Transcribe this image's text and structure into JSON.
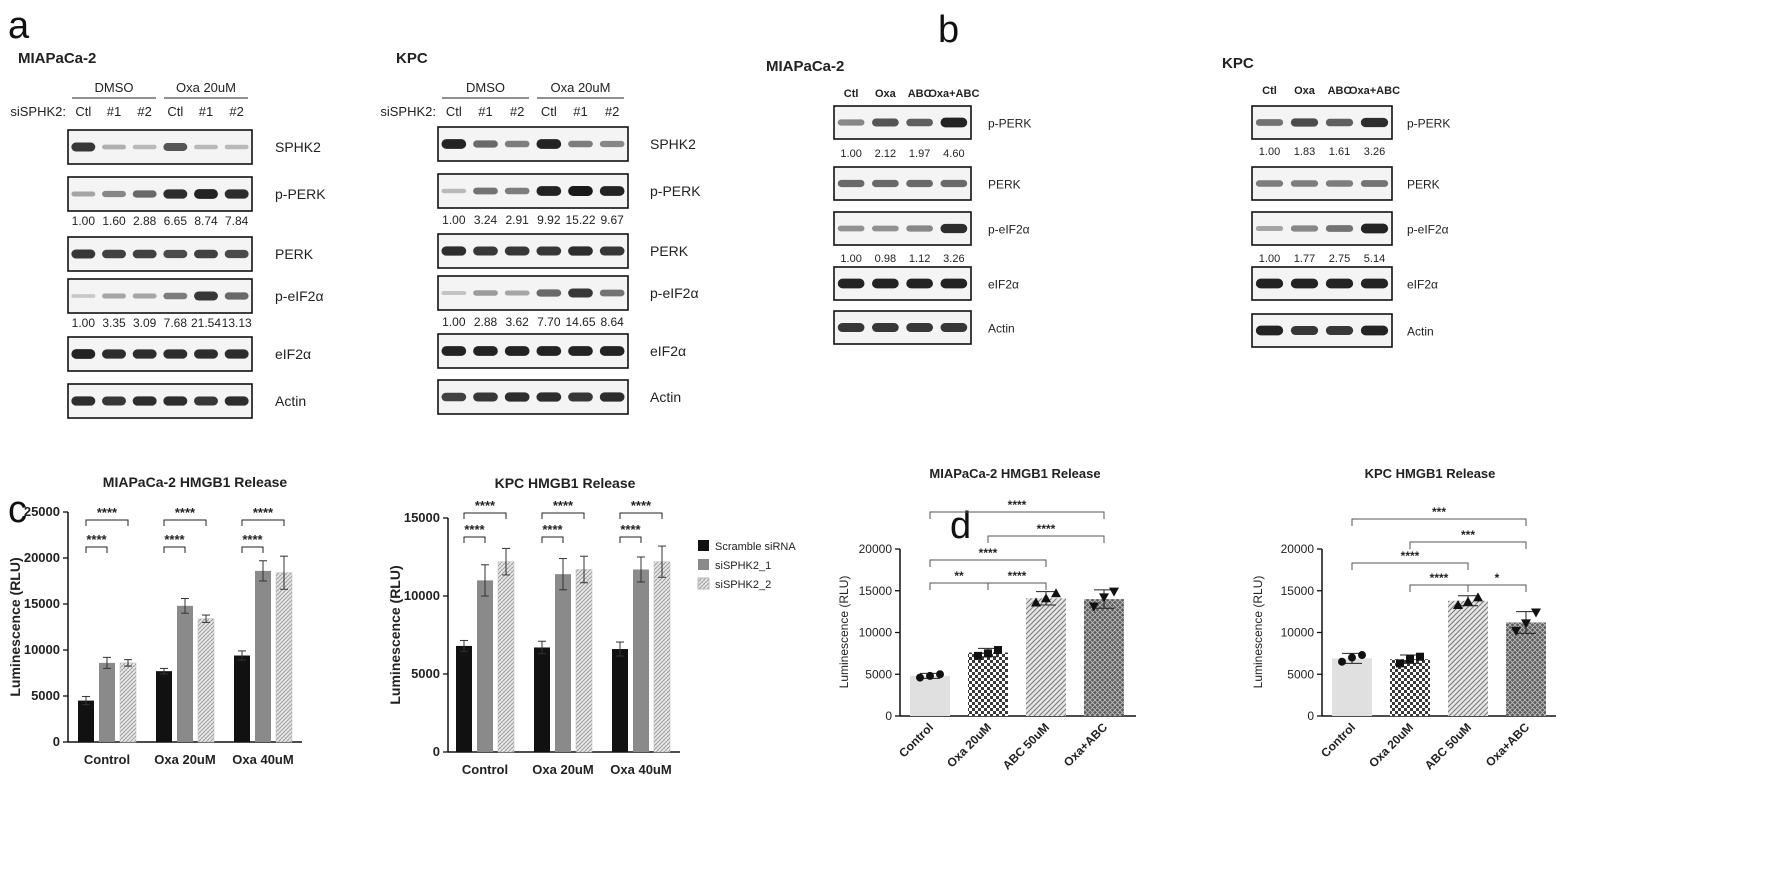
{
  "panel_letters": {
    "a": "a",
    "b": "b",
    "c": "c",
    "d": "d"
  },
  "blots": [
    {
      "title": "MIAPaCa-2",
      "group_headers": [
        "DMSO",
        "Oxa 20uM"
      ],
      "lane_row_label": "siSPHK2:",
      "lanes": [
        "Ctl",
        "#1",
        "#2",
        "Ctl",
        "#1",
        "#2"
      ],
      "strips": [
        {
          "label": "SPHK2",
          "intensities": [
            0.85,
            0.25,
            0.2,
            0.7,
            0.2,
            0.2
          ]
        },
        {
          "label": "p-PERK",
          "intensities": [
            0.3,
            0.45,
            0.6,
            0.9,
            0.95,
            0.9
          ],
          "quant": [
            "1.00",
            "1.60",
            "2.88",
            "6.65",
            "8.74",
            "7.84"
          ]
        },
        {
          "label": "PERK",
          "intensities": [
            0.85,
            0.8,
            0.8,
            0.75,
            0.8,
            0.75
          ]
        },
        {
          "label": "p-eIF2α",
          "intensities": [
            0.12,
            0.3,
            0.3,
            0.5,
            0.85,
            0.6
          ],
          "quant": [
            "1.00",
            "3.35",
            "3.09",
            "7.68",
            "21.54",
            "13.13"
          ]
        },
        {
          "label": "eIF2α",
          "intensities": [
            0.95,
            0.9,
            0.9,
            0.9,
            0.9,
            0.9
          ]
        },
        {
          "label": "Actin",
          "intensities": [
            0.9,
            0.85,
            0.9,
            0.9,
            0.85,
            0.9
          ]
        }
      ]
    },
    {
      "title": "KPC",
      "group_headers": [
        "DMSO",
        "Oxa 20uM"
      ],
      "lane_row_label": "siSPHK2:",
      "lanes": [
        "Ctl",
        "#1",
        "#2",
        "Ctl",
        "#1",
        "#2"
      ],
      "strips": [
        {
          "label": "SPHK2",
          "intensities": [
            0.95,
            0.6,
            0.5,
            0.95,
            0.5,
            0.45
          ]
        },
        {
          "label": "p-PERK",
          "intensities": [
            0.2,
            0.55,
            0.5,
            0.95,
            1.0,
            0.95
          ],
          "quant": [
            "1.00",
            "3.24",
            "2.91",
            "9.92",
            "15.22",
            "9.67"
          ]
        },
        {
          "label": "PERK",
          "intensities": [
            0.9,
            0.85,
            0.85,
            0.85,
            0.9,
            0.85
          ]
        },
        {
          "label": "p-eIF2α",
          "intensities": [
            0.15,
            0.35,
            0.3,
            0.6,
            0.85,
            0.55
          ],
          "quant": [
            "1.00",
            "2.88",
            "3.62",
            "7.70",
            "14.65",
            "8.64"
          ]
        },
        {
          "label": "eIF2α",
          "intensities": [
            0.95,
            0.95,
            0.95,
            0.95,
            0.95,
            0.95
          ]
        },
        {
          "label": "Actin",
          "intensities": [
            0.8,
            0.85,
            0.9,
            0.9,
            0.85,
            0.9
          ]
        }
      ]
    },
    {
      "title": "MIAPaCa-2",
      "lanes": [
        "Ctl",
        "Oxa",
        "ABC",
        "Oxa+ABC"
      ],
      "strips": [
        {
          "label": "p-PERK",
          "intensities": [
            0.45,
            0.7,
            0.65,
            0.95
          ],
          "quant": [
            "1.00",
            "2.12",
            "1.97",
            "4.60"
          ]
        },
        {
          "label": "PERK",
          "intensities": [
            0.6,
            0.6,
            0.6,
            0.6
          ]
        },
        {
          "label": "p-eIF2α",
          "intensities": [
            0.4,
            0.4,
            0.45,
            0.9
          ],
          "quant": [
            "1.00",
            "0.98",
            "1.12",
            "3.26"
          ]
        },
        {
          "label": "eIF2α",
          "intensities": [
            0.95,
            0.95,
            0.95,
            0.95
          ]
        },
        {
          "label": "Actin",
          "intensities": [
            0.85,
            0.85,
            0.85,
            0.85
          ]
        }
      ]
    },
    {
      "title": "KPC",
      "lanes": [
        "Ctl",
        "Oxa",
        "ABC",
        "Oxa+ABC"
      ],
      "strips": [
        {
          "label": "p-PERK",
          "intensities": [
            0.55,
            0.75,
            0.65,
            0.9
          ],
          "quant": [
            "1.00",
            "1.83",
            "1.61",
            "3.26"
          ]
        },
        {
          "label": "PERK",
          "intensities": [
            0.5,
            0.5,
            0.5,
            0.55
          ]
        },
        {
          "label": "p-eIF2α",
          "intensities": [
            0.3,
            0.45,
            0.55,
            0.95
          ],
          "quant": [
            "1.00",
            "1.77",
            "2.75",
            "5.14"
          ]
        },
        {
          "label": "eIF2α",
          "intensities": [
            0.95,
            0.95,
            0.95,
            0.95
          ]
        },
        {
          "label": "Actin",
          "intensities": [
            0.95,
            0.85,
            0.85,
            0.95
          ]
        }
      ]
    }
  ],
  "chart_data": [
    {
      "type": "bar",
      "title": "MIAPaCa-2 HMGB1 Release",
      "xlabel": "",
      "ylabel": "Luminescence (RLU)",
      "ylim": [
        0,
        25000
      ],
      "yticks": [
        0,
        5000,
        10000,
        15000,
        20000,
        25000
      ],
      "categories": [
        "Control",
        "Oxa 20uM",
        "Oxa 40uM"
      ],
      "series": [
        {
          "name": "Scramble siRNA",
          "values": [
            4500,
            7700,
            9400
          ],
          "errors": [
            450,
            300,
            500
          ]
        },
        {
          "name": "siSPHK2_1",
          "values": [
            8600,
            14800,
            18600
          ],
          "errors": [
            600,
            800,
            1100
          ]
        },
        {
          "name": "siSPHK2_2",
          "values": [
            8600,
            13400,
            18400
          ],
          "errors": [
            350,
            400,
            1800
          ]
        }
      ],
      "significance": [
        {
          "category": 0,
          "from": 0,
          "to": 2,
          "label": "****"
        },
        {
          "category": 0,
          "from": 0,
          "to": 1,
          "label": "****"
        },
        {
          "category": 1,
          "from": 0,
          "to": 2,
          "label": "****"
        },
        {
          "category": 1,
          "from": 0,
          "to": 1,
          "label": "****"
        },
        {
          "category": 2,
          "from": 0,
          "to": 2,
          "label": "****"
        },
        {
          "category": 2,
          "from": 0,
          "to": 1,
          "label": "****"
        }
      ]
    },
    {
      "type": "bar",
      "title": "KPC HMGB1 Release",
      "xlabel": "",
      "ylabel": "Luminescence (RLU)",
      "ylim": [
        0,
        15000
      ],
      "yticks": [
        0,
        5000,
        10000,
        15000
      ],
      "categories": [
        "Control",
        "Oxa 20uM",
        "Oxa 40uM"
      ],
      "series": [
        {
          "name": "Scramble siRNA",
          "values": [
            6800,
            6700,
            6600
          ],
          "errors": [
            350,
            400,
            450
          ]
        },
        {
          "name": "siSPHK2_1",
          "values": [
            11000,
            11400,
            11700
          ],
          "errors": [
            1000,
            1000,
            800
          ]
        },
        {
          "name": "siSPHK2_2",
          "values": [
            12200,
            11700,
            12200
          ],
          "errors": [
            850,
            850,
            1000
          ]
        }
      ],
      "legend": "right",
      "significance": [
        {
          "category": 0,
          "from": 0,
          "to": 2,
          "label": "****"
        },
        {
          "category": 0,
          "from": 0,
          "to": 1,
          "label": "****"
        },
        {
          "category": 1,
          "from": 0,
          "to": 2,
          "label": "****"
        },
        {
          "category": 1,
          "from": 0,
          "to": 1,
          "label": "****"
        },
        {
          "category": 2,
          "from": 0,
          "to": 2,
          "label": "****"
        },
        {
          "category": 2,
          "from": 0,
          "to": 1,
          "label": "****"
        }
      ]
    },
    {
      "type": "bar",
      "title": "MIAPaCa-2 HMGB1 Release",
      "xlabel": "",
      "ylabel": "Luminescence (RLU)",
      "ylim": [
        0,
        20000
      ],
      "yticks": [
        0,
        5000,
        10000,
        15000,
        20000
      ],
      "categories": [
        "Control",
        "Oxa 20uM",
        "ABC 50uM",
        "Oxa+ABC"
      ],
      "values": [
        4800,
        7600,
        14100,
        14000
      ],
      "errors": [
        300,
        500,
        800,
        1100
      ],
      "points": [
        [
          4600,
          4800,
          5000
        ],
        [
          7200,
          7500,
          7900
        ],
        [
          13600,
          14100,
          14700
        ],
        [
          13100,
          14200,
          14900
        ]
      ],
      "significance": [
        {
          "from": 0,
          "to": 3,
          "label": "****"
        },
        {
          "from": 1,
          "to": 3,
          "label": "****"
        },
        {
          "from": 0,
          "to": 2,
          "label": "****"
        },
        {
          "from": 0,
          "to": 1,
          "label": "**"
        },
        {
          "from": 1,
          "to": 2,
          "label": "****"
        }
      ]
    },
    {
      "type": "bar",
      "title": "KPC HMGB1 Release",
      "xlabel": "",
      "ylabel": "Luminescence (RLU)",
      "ylim": [
        0,
        20000
      ],
      "yticks": [
        0,
        5000,
        10000,
        15000,
        20000
      ],
      "categories": [
        "Control",
        "Oxa 20uM",
        "ABC 50uM",
        "Oxa+ABC"
      ],
      "values": [
        6900,
        6800,
        13800,
        11200
      ],
      "errors": [
        600,
        500,
        600,
        1300
      ],
      "points": [
        [
          6500,
          7000,
          7300
        ],
        [
          6300,
          6800,
          7100
        ],
        [
          13300,
          13700,
          14200
        ],
        [
          10200,
          11100,
          12400
        ]
      ],
      "significance": [
        {
          "from": 0,
          "to": 3,
          "label": "***"
        },
        {
          "from": 1,
          "to": 3,
          "label": "***"
        },
        {
          "from": 0,
          "to": 2,
          "label": "****"
        },
        {
          "from": 1,
          "to": 2,
          "label": "****"
        },
        {
          "from": 2,
          "to": 3,
          "label": "*"
        }
      ]
    }
  ]
}
